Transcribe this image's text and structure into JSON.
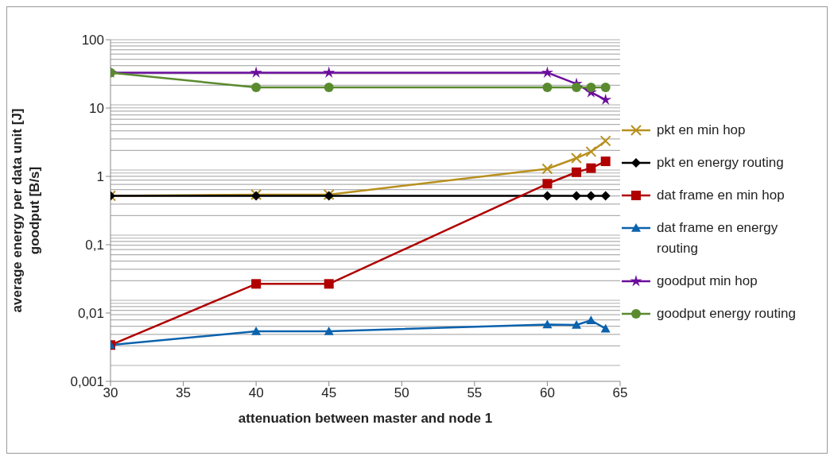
{
  "chart_data": {
    "type": "line",
    "xlabel": "attenuation between master and node 1",
    "ylabel": "average energy per data unit [J]\ngoodput [B/s]",
    "x": [
      30,
      40,
      45,
      60,
      62,
      63,
      64
    ],
    "series": [
      {
        "name": "pkt en min hop",
        "color": "#b8901e",
        "marker": "cross",
        "values": [
          0.52,
          0.54,
          0.54,
          1.29,
          1.85,
          2.3,
          3.3
        ]
      },
      {
        "name": "pkt en energy routing",
        "color": "#000000",
        "marker": "diamond",
        "values": [
          0.52,
          0.52,
          0.52,
          0.52,
          0.52,
          0.52,
          0.52
        ]
      },
      {
        "name": "dat frame en min hop",
        "color": "#b00000",
        "marker": "square",
        "values": [
          0.0034,
          0.0267,
          0.0267,
          0.78,
          1.15,
          1.32,
          1.66
        ]
      },
      {
        "name": "dat frame en energy routing",
        "color": "#0b62ad",
        "marker": "triangle",
        "values": [
          0.0034,
          0.0054,
          0.0054,
          0.0068,
          0.0067,
          0.0078,
          0.0059
        ]
      },
      {
        "name": "goodput min hop",
        "color": "#6a0d9c",
        "marker": "star",
        "values": [
          33,
          33,
          33,
          33,
          22.6,
          17,
          13.2
        ]
      },
      {
        "name": "goodput energy routing",
        "color": "#5a8a2e",
        "marker": "circle",
        "values": [
          33,
          20,
          20,
          20,
          20,
          20,
          20
        ]
      }
    ],
    "xlim": [
      30,
      65
    ],
    "xticks": [
      30,
      35,
      40,
      45,
      50,
      55,
      60,
      65
    ],
    "ylim": [
      0.001,
      100
    ],
    "yticks": [
      {
        "value": 0.001,
        "label": "0,001"
      },
      {
        "value": 0.01,
        "label": "0,01"
      },
      {
        "value": 0.1,
        "label": "0,1"
      },
      1,
      10,
      100
    ],
    "log": "y",
    "grid": "y",
    "legend": "right",
    "line_style": "solid"
  }
}
